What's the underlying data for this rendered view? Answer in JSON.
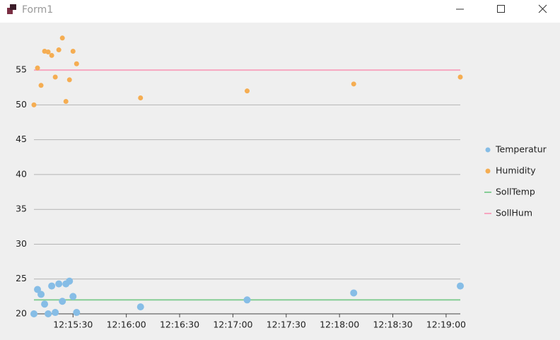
{
  "window": {
    "title": "Form1"
  },
  "chart_data": {
    "type": "scatter",
    "x": [
      "12:15:08",
      "12:15:10",
      "12:15:12",
      "12:15:14",
      "12:15:16",
      "12:15:18",
      "12:15:20",
      "12:15:22",
      "12:15:24",
      "12:15:26",
      "12:15:28",
      "12:15:30",
      "12:15:32",
      "12:16:08",
      "12:17:08",
      "12:18:08",
      "12:19:08"
    ],
    "series": [
      {
        "name": "Temperatur",
        "kind": "points",
        "color": "#86bde6",
        "values": [
          20,
          23.5,
          22.8,
          21.4,
          20,
          24,
          20.2,
          24.3,
          21.8,
          24.3,
          24.7,
          22.5,
          20.2,
          21,
          22,
          23,
          24
        ]
      },
      {
        "name": "Humidity",
        "kind": "points",
        "color": "#f5ad52",
        "values": [
          50,
          55.3,
          52.8,
          57.7,
          57.6,
          57.1,
          54,
          57.9,
          59.6,
          50.5,
          53.6,
          57.7,
          55.9,
          51,
          52,
          53,
          54
        ]
      },
      {
        "name": "SollTemp",
        "kind": "line",
        "color": "#86cd96",
        "values": [
          22,
          22,
          22,
          22,
          22,
          22,
          22,
          22,
          22,
          22,
          22,
          22,
          22,
          22,
          22,
          22,
          22
        ]
      },
      {
        "name": "SollHum",
        "kind": "line",
        "color": "#f7a6c0",
        "values": [
          55,
          55,
          55,
          55,
          55,
          55,
          55,
          55,
          55,
          55,
          55,
          55,
          55,
          55,
          55,
          55,
          55
        ]
      }
    ],
    "xlim": [
      "12:15:08",
      "12:19:08"
    ],
    "xticks": [
      "12:15:30",
      "12:16:00",
      "12:16:30",
      "12:17:00",
      "12:17:30",
      "12:18:00",
      "12:18:30",
      "12:19:00"
    ],
    "ylim": [
      20,
      61
    ],
    "yticks": [
      20,
      25,
      30,
      35,
      40,
      45,
      50,
      55
    ],
    "grid": true,
    "legend": "right"
  }
}
